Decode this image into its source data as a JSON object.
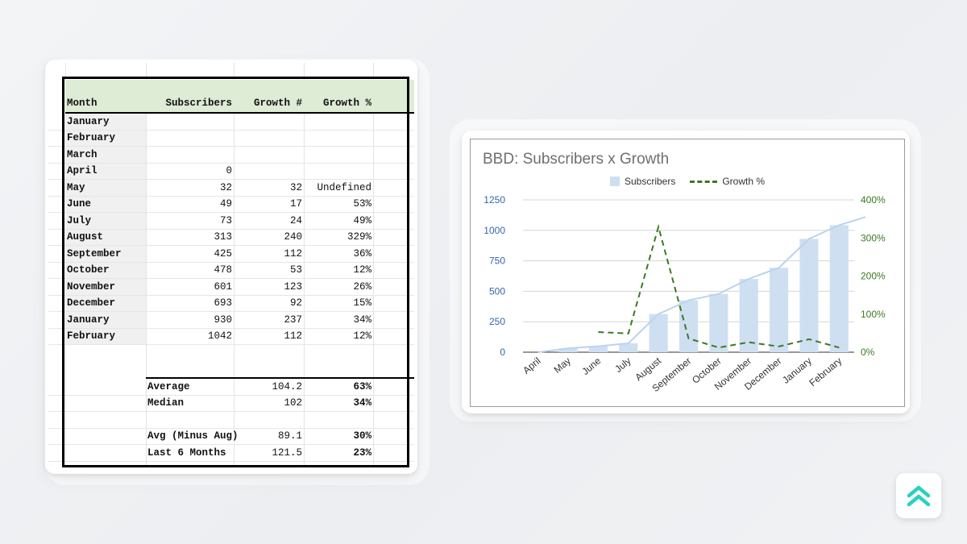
{
  "sheet": {
    "headers": {
      "month": "Month",
      "subscribers": "Subscribers",
      "growth_num": "Growth #",
      "growth_pct": "Growth %"
    },
    "rows": [
      {
        "month": "January",
        "subscribers": "",
        "growth_num": "",
        "growth_pct": ""
      },
      {
        "month": "February",
        "subscribers": "",
        "growth_num": "",
        "growth_pct": ""
      },
      {
        "month": "March",
        "subscribers": "",
        "growth_num": "",
        "growth_pct": ""
      },
      {
        "month": "April",
        "subscribers": "0",
        "growth_num": "",
        "growth_pct": ""
      },
      {
        "month": "May",
        "subscribers": "32",
        "growth_num": "32",
        "growth_pct": "Undefined"
      },
      {
        "month": "June",
        "subscribers": "49",
        "growth_num": "17",
        "growth_pct": "53%"
      },
      {
        "month": "July",
        "subscribers": "73",
        "growth_num": "24",
        "growth_pct": "49%"
      },
      {
        "month": "August",
        "subscribers": "313",
        "growth_num": "240",
        "growth_pct": "329%"
      },
      {
        "month": "September",
        "subscribers": "425",
        "growth_num": "112",
        "growth_pct": "36%"
      },
      {
        "month": "October",
        "subscribers": "478",
        "growth_num": "53",
        "growth_pct": "12%"
      },
      {
        "month": "November",
        "subscribers": "601",
        "growth_num": "123",
        "growth_pct": "26%"
      },
      {
        "month": "December",
        "subscribers": "693",
        "growth_num": "92",
        "growth_pct": "15%"
      },
      {
        "month": "January",
        "subscribers": "930",
        "growth_num": "237",
        "growth_pct": "34%"
      },
      {
        "month": "February",
        "subscribers": "1042",
        "growth_num": "112",
        "growth_pct": "12%"
      }
    ],
    "stats": [
      {
        "label": "Average",
        "value": "104.2",
        "pct": "63%"
      },
      {
        "label": "Median",
        "value": "102",
        "pct": "34%"
      },
      {
        "label": "Avg (Minus Aug)",
        "value": "89.1",
        "pct": "30%"
      },
      {
        "label": "Last 6 Months",
        "value": "121.5",
        "pct": "23%"
      }
    ]
  },
  "chart_data": {
    "type": "bar",
    "title": "BBD: Subscribers x Growth",
    "categories": [
      "April",
      "May",
      "June",
      "July",
      "August",
      "September",
      "October",
      "November",
      "December",
      "January",
      "February"
    ],
    "series": [
      {
        "name": "Subscribers",
        "kind": "bar",
        "axis": "left",
        "color": "#cfdff2",
        "values": [
          0,
          32,
          49,
          73,
          313,
          425,
          478,
          601,
          693,
          930,
          1042
        ]
      },
      {
        "name": "Growth %",
        "kind": "dashed-line",
        "axis": "right",
        "color": "#3b7a22",
        "values": [
          null,
          null,
          53,
          49,
          329,
          36,
          12,
          26,
          15,
          34,
          12
        ]
      }
    ],
    "trendline": {
      "color": "#bcd3ee"
    },
    "left_axis": {
      "ticks": [
        "0",
        "250",
        "500",
        "750",
        "1000",
        "1250"
      ],
      "range": [
        0,
        1250
      ],
      "color": "#3566a8"
    },
    "right_axis": {
      "ticks": [
        "0%",
        "100%",
        "200%",
        "300%",
        "400%"
      ],
      "range": [
        0,
        400
      ],
      "color": "#3b7a22"
    },
    "legend": {
      "position": "top",
      "labels": [
        "Subscribers",
        "Growth %"
      ]
    },
    "grid": true
  }
}
